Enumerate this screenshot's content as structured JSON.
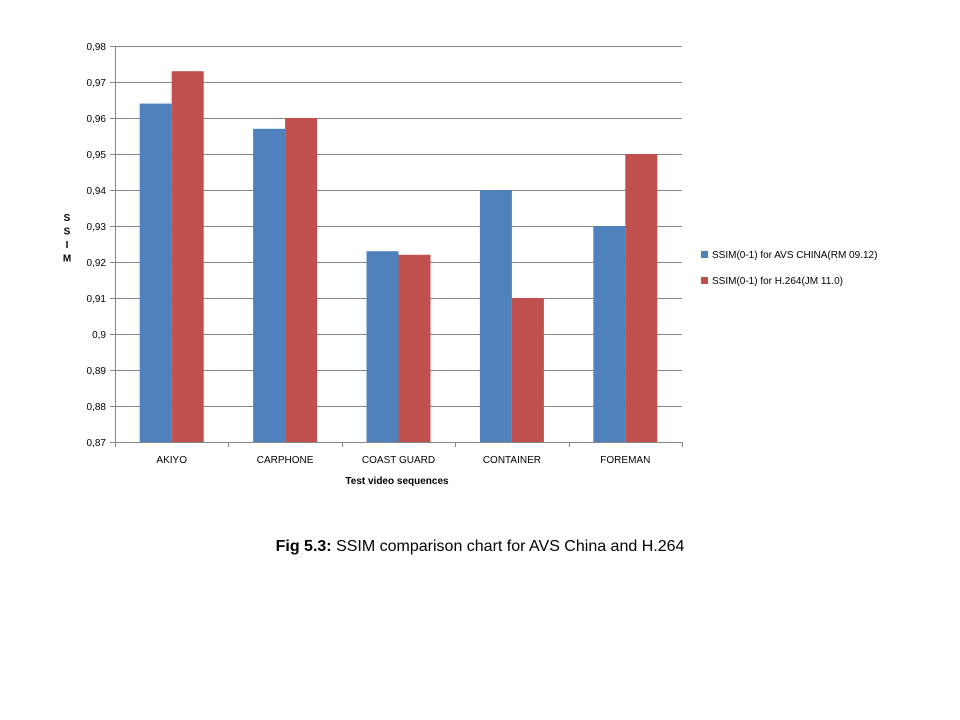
{
  "chart_data": {
    "type": "bar",
    "categories": [
      "AKIYO",
      "CARPHONE",
      "COAST GUARD",
      "CONTAINER",
      "FOREMAN"
    ],
    "series": [
      {
        "name": "SSIM(0-1) for AVS CHINA(RM 09.12)",
        "values": [
          0.964,
          0.957,
          0.923,
          0.94,
          0.93
        ],
        "color": "#4F81BD"
      },
      {
        "name": "SSIM(0-1) for H.264(JM 11.0)",
        "values": [
          0.973,
          0.96,
          0.922,
          0.91,
          0.95
        ],
        "color": "#C0504D"
      }
    ],
    "xlabel": "Test video sequences",
    "ylabel": "SSIM",
    "ylim": [
      0.87,
      0.98
    ],
    "yticks": [
      0.87,
      0.88,
      0.89,
      0.9,
      0.91,
      0.92,
      0.93,
      0.94,
      0.95,
      0.96,
      0.97,
      0.98
    ],
    "ytick_labels": [
      "0,87",
      "0,88",
      "0,89",
      "0,9",
      "0,91",
      "0,92",
      "0,93",
      "0,94",
      "0,95",
      "0,96",
      "0,97",
      "0,98"
    ],
    "grid": true,
    "legend_position": "right"
  },
  "caption": {
    "label": "Fig 5.3:",
    "text": " SSIM comparison chart for AVS China and H.264"
  }
}
